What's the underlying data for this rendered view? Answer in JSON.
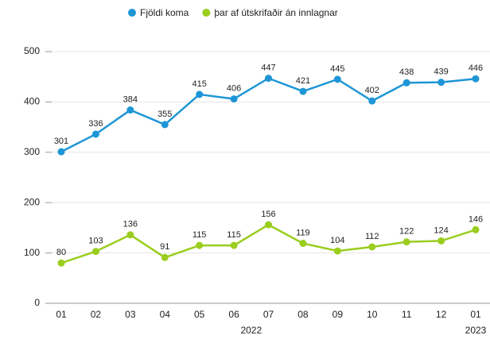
{
  "chart_data": {
    "type": "line",
    "categories": [
      "01",
      "02",
      "03",
      "04",
      "05",
      "06",
      "07",
      "08",
      "09",
      "10",
      "11",
      "12",
      "01"
    ],
    "groups": [
      {
        "label": "2022",
        "start": 0,
        "end": 11
      },
      {
        "label": "2023",
        "start": 12,
        "end": 12
      }
    ],
    "series": [
      {
        "name": "Fjöldi koma",
        "color": "#1e96d6",
        "values": [
          301,
          336,
          384,
          355,
          415,
          406,
          447,
          421,
          445,
          402,
          438,
          439,
          446
        ]
      },
      {
        "name": "þar af útskrifaðir án innlagnar",
        "color": "#9acd1e",
        "values": [
          80,
          103,
          136,
          91,
          115,
          115,
          156,
          119,
          104,
          112,
          122,
          124,
          146
        ]
      }
    ],
    "ylim": [
      0,
      500
    ],
    "yticks": [
      0,
      100,
      200,
      300,
      400,
      500
    ],
    "grid": true,
    "legend": "top"
  }
}
